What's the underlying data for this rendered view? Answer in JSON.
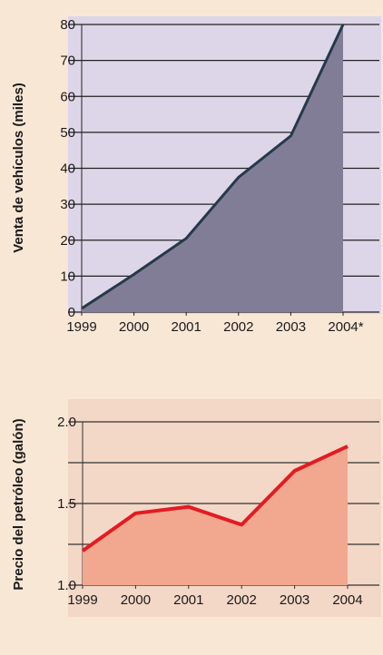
{
  "chart_data": [
    {
      "type": "area",
      "ylabel": "Venta de vehículos (miles)",
      "xlabel": "",
      "x": [
        1999,
        2000,
        2001,
        2002,
        2003,
        2004
      ],
      "xticklabels": [
        "1999",
        "2000",
        "2001",
        "2002",
        "2003",
        "2004*"
      ],
      "series": [
        {
          "values": [
            1,
            10.5,
            20.5,
            37.5,
            49,
            80
          ]
        }
      ],
      "ylim": [
        0,
        80
      ],
      "yticks": [
        0,
        10,
        20,
        30,
        40,
        50,
        60,
        70,
        80
      ],
      "grid": "horizontal",
      "colors": {
        "fill": "#827d97",
        "line": "#25394a",
        "plot_bg": "#ddd6e9",
        "grid": "#222222"
      }
    },
    {
      "type": "area",
      "ylabel": "Precio del petróleo (galón)",
      "xlabel": "",
      "x": [
        1999,
        2000,
        2001,
        2002,
        2003,
        2004
      ],
      "xticklabels": [
        "1999",
        "2000",
        "2001",
        "2002",
        "2003",
        "2004"
      ],
      "series": [
        {
          "values": [
            1.21,
            1.44,
            1.48,
            1.37,
            1.7,
            1.85
          ]
        }
      ],
      "ylim": [
        1.0,
        2.0
      ],
      "yticks": [
        "1.0",
        "1.5",
        "2.0"
      ],
      "grid": "horizontal",
      "colors": {
        "fill": "#f1a88f",
        "line": "#e51a21",
        "plot_bg": "#f3d7c7",
        "grid": "#333333"
      }
    }
  ]
}
